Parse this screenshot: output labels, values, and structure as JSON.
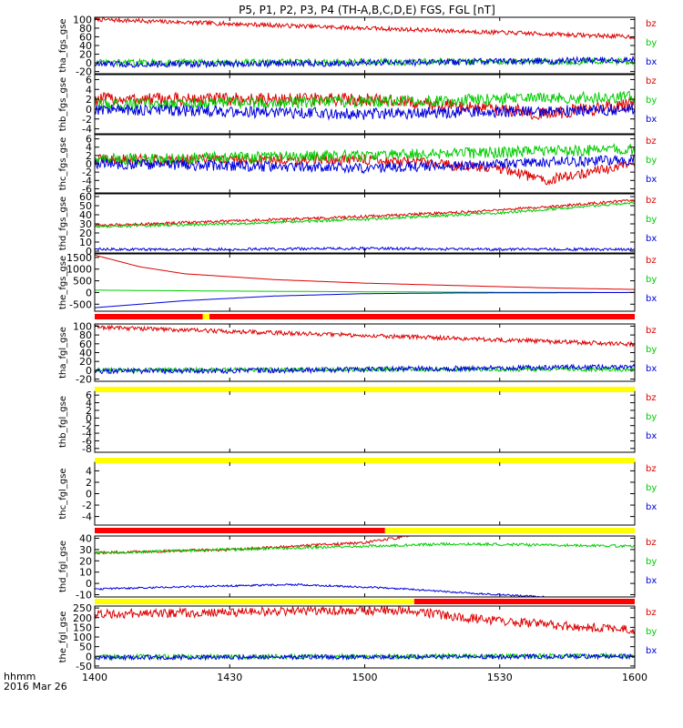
{
  "title": "P5, P1, P2, P3, P4 (TH-A,B,C,D,E) FGS, FGL [nT]",
  "colors": {
    "bz": "#dd0000",
    "by": "#00cc00",
    "bx": "#0000dd",
    "yellow": "#ffff00",
    "red": "#ff0000",
    "black": "#000000"
  },
  "x_axis": {
    "ticks": [
      {
        "label": "1400",
        "min": 0
      },
      {
        "label": "1430",
        "min": 30
      },
      {
        "label": "1500",
        "min": 60
      },
      {
        "label": "1530",
        "min": 90
      },
      {
        "label": "1600",
        "min": 120
      }
    ],
    "unit_label": "hhmm",
    "date_label": "2016 Mar 26"
  },
  "chart_data": [
    {
      "type": "line",
      "panel": "tha_fgs_gse",
      "ylabel": "tha_fgs_gse",
      "yticks": [
        -20,
        0,
        20,
        40,
        60,
        80,
        100
      ],
      "ylim": [
        -25,
        105
      ],
      "legend": [
        "bz",
        "by",
        "bx"
      ],
      "series": [
        {
          "name": "bz",
          "x": [
            0,
            30,
            60,
            90,
            120
          ],
          "y": [
            100,
            90,
            80,
            70,
            60
          ],
          "noise": 0.5
        },
        {
          "name": "by",
          "x": [
            0,
            30,
            60,
            90,
            120
          ],
          "y": [
            0,
            1,
            2,
            2,
            3
          ],
          "noise": 0.8
        },
        {
          "name": "bx",
          "x": [
            0,
            30,
            60,
            90,
            120
          ],
          "y": [
            -3,
            -2,
            0,
            3,
            7
          ],
          "noise": 0.8
        }
      ]
    },
    {
      "type": "line",
      "panel": "thb_fgs_gse",
      "ylabel": "thb_fgs_gse",
      "yticks": [
        -4,
        -2,
        0,
        2,
        4,
        6
      ],
      "ylim": [
        -5,
        7
      ],
      "legend": [
        "bz",
        "by",
        "bx"
      ],
      "series": [
        {
          "name": "bz",
          "x": [
            0,
            60,
            90,
            100,
            120
          ],
          "y": [
            2,
            2,
            0,
            -1,
            1
          ],
          "noise": 1.5
        },
        {
          "name": "by",
          "x": [
            0,
            60,
            120
          ],
          "y": [
            1,
            1.5,
            2.5
          ],
          "noise": 1.3
        },
        {
          "name": "bx",
          "x": [
            0,
            60,
            120
          ],
          "y": [
            0,
            -1,
            0
          ],
          "noise": 1.3
        }
      ]
    },
    {
      "type": "line",
      "panel": "thc_fgs_gse",
      "ylabel": "thc_fgs_gse",
      "yticks": [
        -6,
        -4,
        -2,
        0,
        2,
        4,
        6
      ],
      "ylim": [
        -7,
        7
      ],
      "legend": [
        "bz",
        "by",
        "bx"
      ],
      "series": [
        {
          "name": "bz",
          "x": [
            0,
            60,
            90,
            100,
            120
          ],
          "y": [
            1,
            1,
            -1,
            -4,
            0
          ],
          "noise": 1.2
        },
        {
          "name": "by",
          "x": [
            0,
            60,
            120
          ],
          "y": [
            1,
            2,
            3.5
          ],
          "noise": 1.3
        },
        {
          "name": "bx",
          "x": [
            0,
            60,
            90,
            120
          ],
          "y": [
            0,
            -1,
            0,
            1
          ],
          "noise": 1.2
        }
      ]
    },
    {
      "type": "line",
      "panel": "thd_fgs_gse",
      "ylabel": "thd_fgs_gse",
      "yticks": [
        0,
        10,
        20,
        30,
        40,
        50,
        60
      ],
      "ylim": [
        -2,
        63
      ],
      "legend": [
        "bz",
        "by",
        "bx"
      ],
      "series": [
        {
          "name": "bz",
          "x": [
            0,
            30,
            60,
            90,
            120
          ],
          "y": [
            28,
            33,
            38,
            45,
            56
          ],
          "noise": 0.3
        },
        {
          "name": "by",
          "x": [
            0,
            30,
            60,
            90,
            120
          ],
          "y": [
            27,
            30,
            35,
            42,
            53
          ],
          "noise": 0.3
        },
        {
          "name": "bx",
          "x": [
            0,
            30,
            60,
            90,
            120
          ],
          "y": [
            2,
            2,
            3,
            2,
            2
          ],
          "noise": 0.3
        }
      ]
    },
    {
      "type": "line",
      "panel": "the_fgs_gse",
      "ylabel": "the_fgs_gse",
      "yticks": [
        -500,
        0,
        500,
        1000,
        1500
      ],
      "ylim": [
        -800,
        1650
      ],
      "legend": [
        "bz",
        "by",
        "bx"
      ],
      "series": [
        {
          "name": "bz",
          "x": [
            0,
            10,
            20,
            40,
            60,
            80,
            100,
            120
          ],
          "y": [
            1600,
            1100,
            800,
            550,
            400,
            300,
            200,
            130
          ],
          "noise": 0
        },
        {
          "name": "by",
          "x": [
            0,
            30,
            60,
            90,
            120
          ],
          "y": [
            100,
            60,
            30,
            10,
            0
          ],
          "noise": 0
        },
        {
          "name": "bx",
          "x": [
            0,
            20,
            40,
            60,
            80,
            120
          ],
          "y": [
            -650,
            -350,
            -150,
            -50,
            -20,
            0
          ],
          "noise": 0
        }
      ]
    },
    {
      "type": "line",
      "panel": "tha_fgl_gse",
      "ylabel": "tha_fgl_gse",
      "yticks": [
        -20,
        0,
        20,
        40,
        60,
        80,
        100
      ],
      "ylim": [
        -25,
        105
      ],
      "legend": [
        "bz",
        "by",
        "bx"
      ],
      "series": [
        {
          "name": "bz",
          "x": [
            0,
            30,
            60,
            90,
            120
          ],
          "y": [
            98,
            88,
            79,
            69,
            59
          ],
          "noise": 0.5
        },
        {
          "name": "by",
          "x": [
            0,
            30,
            60,
            90,
            120
          ],
          "y": [
            0,
            1,
            2,
            2,
            2
          ],
          "noise": 0.5
        },
        {
          "name": "bx",
          "x": [
            0,
            30,
            60,
            90,
            120
          ],
          "y": [
            -2,
            -1,
            2,
            5,
            8
          ],
          "noise": 0.6
        }
      ]
    },
    {
      "type": "line",
      "panel": "thb_fgl_gse",
      "ylabel": "thb_fgl_gse",
      "yticks": [
        -8,
        -6,
        -4,
        -2,
        0,
        2,
        4,
        6
      ],
      "ylim": [
        -9,
        7
      ],
      "legend": [
        "bz",
        "by",
        "bx"
      ],
      "series": []
    },
    {
      "type": "line",
      "panel": "thc_fgl_gse",
      "ylabel": "thc_fgl_gse",
      "yticks": [
        -4,
        -2,
        0,
        2,
        4
      ],
      "ylim": [
        -5.5,
        5.5
      ],
      "legend": [
        "bz",
        "by",
        "bx"
      ],
      "series": []
    },
    {
      "type": "line",
      "panel": "thd_fgl_gse",
      "ylabel": "thd_fgl_gse",
      "yticks": [
        -10,
        0,
        10,
        20,
        30,
        40
      ],
      "ylim": [
        -12,
        42
      ],
      "legend": [
        "bz",
        "by",
        "bx"
      ],
      "series": [
        {
          "name": "bz",
          "x": [
            0,
            30,
            60,
            70
          ],
          "y": [
            27,
            30,
            36,
            42
          ],
          "noise": 0.3
        },
        {
          "name": "by",
          "x": [
            0,
            30,
            60,
            80,
            120
          ],
          "y": [
            27,
            30,
            33,
            35,
            33
          ],
          "noise": 0.3
        },
        {
          "name": "bx",
          "x": [
            0,
            20,
            45,
            65,
            85,
            100
          ],
          "y": [
            -5,
            -3,
            -1,
            -4,
            -9,
            -12
          ],
          "noise": 0.2
        }
      ]
    },
    {
      "type": "line",
      "panel": "the_fgl_gse",
      "ylabel": "the_fgl_gse",
      "yticks": [
        -50,
        0,
        50,
        100,
        150,
        200,
        250
      ],
      "ylim": [
        -60,
        260
      ],
      "legend": [
        "bz",
        "by",
        "bx"
      ],
      "series": [
        {
          "name": "bz",
          "x": [
            0,
            30,
            60,
            70,
            80,
            100,
            120
          ],
          "y": [
            220,
            228,
            238,
            238,
            205,
            165,
            135
          ],
          "noise": 1
        },
        {
          "name": "by",
          "x": [
            0,
            60,
            120
          ],
          "y": [
            -3,
            0,
            2
          ],
          "noise": 0.5
        },
        {
          "name": "bx",
          "x": [
            0,
            60,
            120
          ],
          "y": [
            -6,
            -3,
            0
          ],
          "noise": 0.5
        }
      ]
    }
  ],
  "mode_bars": [
    [
      {
        "from": 0,
        "to": 24,
        "color": "red"
      },
      {
        "from": 24,
        "to": 25.5,
        "color": "yellow"
      },
      {
        "from": 25.5,
        "to": 120,
        "color": "red"
      }
    ],
    [
      {
        "from": 0,
        "to": 120,
        "color": "yellow"
      }
    ],
    [
      {
        "from": 0,
        "to": 120,
        "color": "yellow"
      }
    ],
    [
      {
        "from": 0,
        "to": 64.5,
        "color": "red"
      },
      {
        "from": 64.5,
        "to": 120,
        "color": "yellow"
      }
    ],
    [
      {
        "from": 0,
        "to": 71,
        "color": "yellow"
      },
      {
        "from": 71,
        "to": 120,
        "color": "red"
      }
    ]
  ]
}
